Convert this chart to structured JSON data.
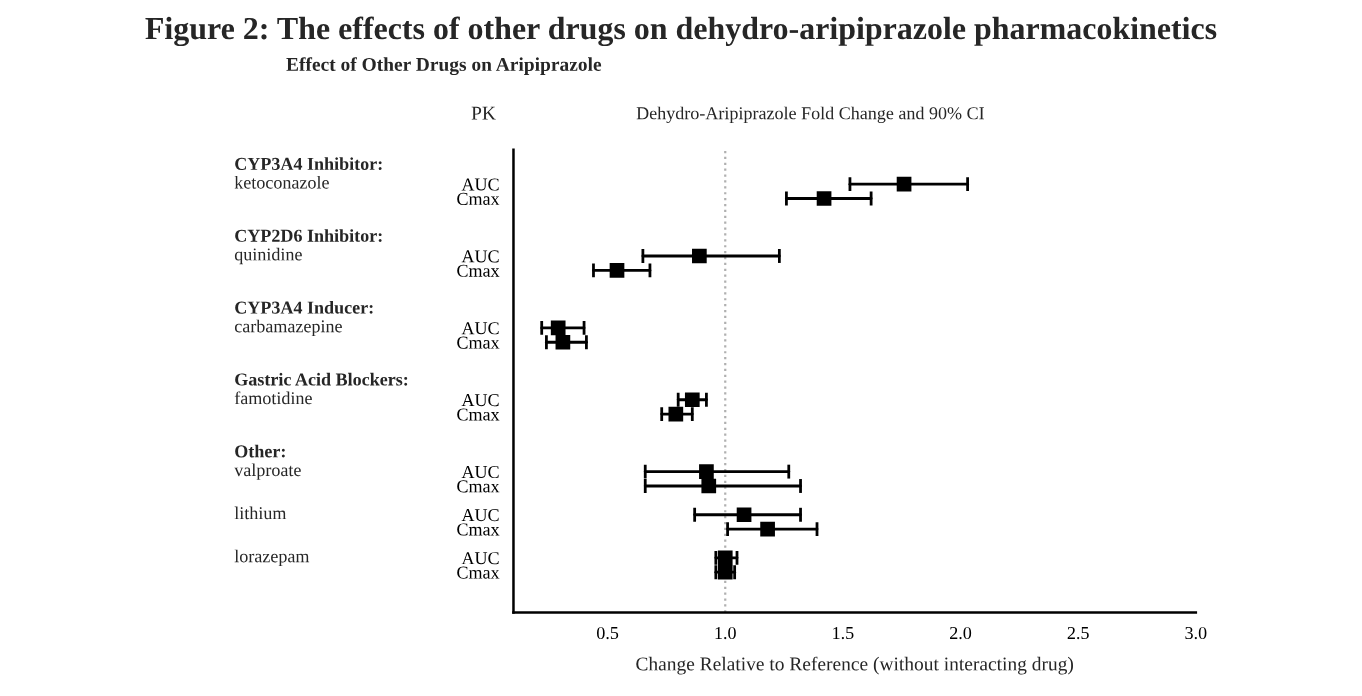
{
  "chart_data": {
    "type": "scatter",
    "orientation": "horizontal",
    "title": "Figure 2: The effects of other drugs on dehydro-aripiprazole pharmacokinetics",
    "subtitle": "Effect of Other Drugs on Aripiprazole",
    "xlabel": "Change Relative to Reference (without interacting drug)",
    "annotations": [
      "PK",
      "Dehydro-Aripiprazole Fold Change and 90% CI",
      "CYP3A4 Inhibitor:",
      "ketoconazole",
      "CYP2D6 Inhibitor:",
      "quinidine",
      "CYP3A4 Inducer:",
      "carbamazepine",
      "Gastric Acid Blockers:",
      "famotidine",
      "Other:",
      "valproate",
      "lithium",
      "lorazepam"
    ],
    "categories": [
      "AUC",
      "Cmax",
      null,
      null,
      null,
      "AUC",
      "Cmax",
      null,
      null,
      null,
      "AUC",
      "Cmax",
      null,
      null,
      null,
      "AUC",
      "Cmax",
      null,
      null,
      null,
      "AUC",
      "Cmax",
      null,
      "AUC",
      "Cmax",
      null,
      "AUC",
      "Cmax"
    ],
    "values": [
      1.76,
      1.42,
      null,
      null,
      null,
      0.89,
      0.54,
      null,
      null,
      null,
      0.29,
      0.31,
      null,
      null,
      null,
      0.86,
      0.79,
      null,
      null,
      null,
      0.92,
      0.93,
      null,
      1.08,
      1.18,
      null,
      1.0,
      1.0
    ],
    "errors": [
      [
        1.53,
        2.03
      ],
      [
        1.26,
        1.62
      ],
      null,
      null,
      null,
      [
        0.65,
        1.23
      ],
      [
        0.44,
        0.68
      ],
      null,
      null,
      null,
      [
        0.22,
        0.4
      ],
      [
        0.24,
        0.41
      ],
      null,
      null,
      null,
      [
        0.8,
        0.92
      ],
      [
        0.73,
        0.86
      ],
      null,
      null,
      null,
      [
        0.66,
        1.27
      ],
      [
        0.66,
        1.32
      ],
      null,
      [
        0.87,
        1.32
      ],
      [
        1.01,
        1.39
      ],
      null,
      [
        0.96,
        1.05
      ],
      [
        0.96,
        1.04
      ]
    ],
    "color": "#000000",
    "ref_lines": [
      {
        "axis": "x",
        "value": 1.0,
        "label": null,
        "color": "#b0b0b0",
        "line_style": "dotted"
      }
    ],
    "xlim": [
      0.1,
      3.0
    ],
    "xticks": [
      0.5,
      {
        "value": 1,
        "label": "1.0"
      },
      1.5,
      {
        "value": 2,
        "label": "2.0"
      },
      2.5,
      {
        "value": 3,
        "label": "3.0"
      }
    ],
    "marker": "square",
    "grid": false,
    "legend": false
  }
}
